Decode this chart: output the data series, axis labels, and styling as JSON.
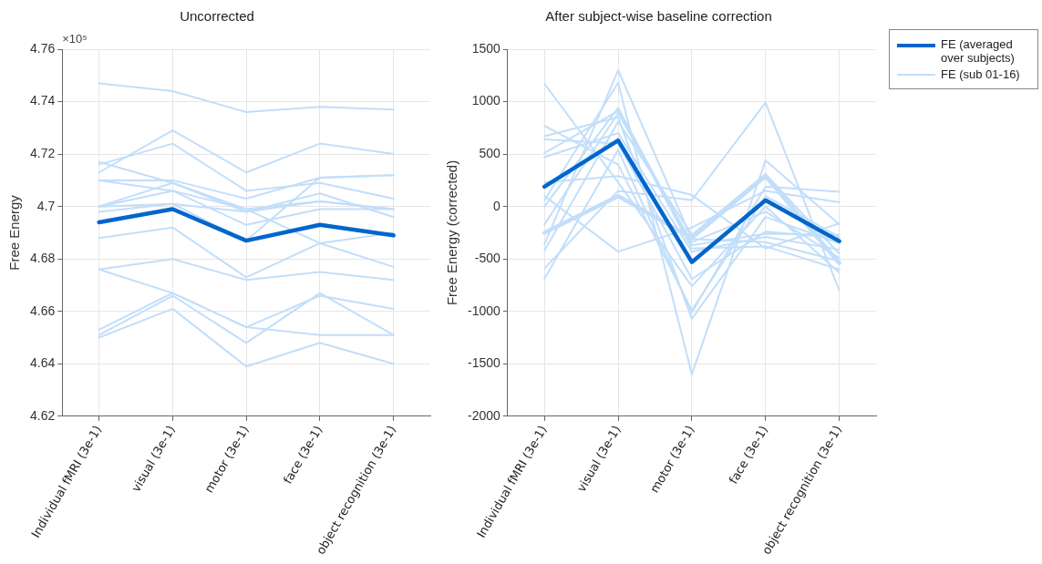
{
  "chart_data": [
    {
      "type": "line",
      "title": "Uncorrected",
      "ylabel": "Free Energy",
      "annotations": [
        "×10⁵"
      ],
      "categories": [
        "Individual fMRI (3e-1)",
        "visual (3e-1)",
        "motor (3e-1)",
        "face (3e-1)",
        "object recognition (3e-1)"
      ],
      "ylim": [
        4.62,
        4.76
      ],
      "yticks": [
        4.62,
        4.64,
        4.66,
        4.68,
        {
          "value": 4.7,
          "label": "4.7"
        },
        4.72,
        4.74,
        4.76
      ],
      "grid": true,
      "marker": "none",
      "line_style": "solid",
      "series": [
        {
          "color": "#c2defa",
          "values": [
            4.747,
            4.744,
            4.736,
            4.738,
            4.737
          ]
        },
        {
          "color": "#c2defa",
          "values": [
            4.713,
            4.729,
            4.713,
            4.724,
            4.72
          ]
        },
        {
          "color": "#c2defa",
          "values": [
            4.716,
            4.724,
            4.706,
            4.709,
            4.703
          ]
        },
        {
          "color": "#c2defa",
          "values": [
            4.717,
            4.709,
            4.698,
            4.705,
            4.696
          ]
        },
        {
          "color": "#c2defa",
          "values": [
            4.71,
            4.71,
            4.703,
            4.711,
            4.712
          ]
        },
        {
          "color": "#c2defa",
          "values": [
            4.71,
            4.706,
            4.699,
            4.702,
            4.699
          ]
        },
        {
          "color": "#c2defa",
          "values": [
            4.7,
            4.706,
            4.693,
            4.699,
            4.699
          ]
        },
        {
          "color": "#c2defa",
          "values": [
            4.7,
            4.701,
            4.698,
            4.702,
            4.699
          ]
        },
        {
          "color": "#c2defa",
          "values": [
            4.698,
            4.701,
            4.687,
            4.711,
            4.712
          ]
        },
        {
          "color": "#c2defa",
          "values": [
            4.7,
            4.709,
            4.699,
            4.686,
            4.69
          ]
        },
        {
          "color": "#c2defa",
          "values": [
            4.688,
            4.692,
            4.673,
            4.686,
            4.677
          ]
        },
        {
          "color": "#c2defa",
          "values": [
            4.676,
            4.68,
            4.672,
            4.675,
            4.672
          ]
        },
        {
          "color": "#c2defa",
          "values": [
            4.676,
            4.667,
            4.654,
            4.651,
            4.651
          ]
        },
        {
          "color": "#c2defa",
          "values": [
            4.653,
            4.667,
            4.654,
            4.666,
            4.661
          ]
        },
        {
          "color": "#c2defa",
          "values": [
            4.651,
            4.666,
            4.648,
            4.667,
            4.651
          ]
        },
        {
          "color": "#c2defa",
          "values": [
            4.65,
            4.661,
            4.639,
            4.648,
            4.64
          ]
        },
        {
          "color": "#0066cc",
          "values": [
            4.694,
            4.699,
            4.687,
            4.693,
            4.689
          ]
        }
      ]
    },
    {
      "type": "line",
      "title": "After subject-wise baseline correction",
      "ylabel": "Free Energy (corrected)",
      "legend": "top right",
      "categories": [
        "Individual fMRI (3e-1)",
        "visual (3e-1)",
        "motor (3e-1)",
        "face (3e-1)",
        "object recognition (3e-1)"
      ],
      "ylim": [
        -2000,
        1500
      ],
      "yticks": [
        -2000,
        -1500,
        -1000,
        -500,
        0,
        500,
        1000,
        1500
      ],
      "grid": true,
      "marker": "none",
      "line_style": "solid",
      "series": [
        {
          "name": "FE (averaged over subjects)",
          "color": "#0066cc",
          "values": [
            190,
            630,
            -530,
            60,
            -330
          ]
        },
        {
          "name": "FE (sub 01-16)",
          "color": "#c2defa",
          "values": [
            1170,
            230,
            -760,
            0,
            -630
          ]
        },
        {
          "color": "#c2defa",
          "values": [
            770,
            400,
            -990,
            100,
            -290
          ]
        },
        {
          "color": "#c2defa",
          "values": [
            670,
            850,
            -1070,
            -100,
            -350
          ]
        },
        {
          "color": "#c2defa",
          "values": [
            640,
            600,
            -690,
            -240,
            -300
          ]
        },
        {
          "color": "#c2defa",
          "values": [
            510,
            910,
            -400,
            -380,
            -600
          ]
        },
        {
          "color": "#c2defa",
          "values": [
            470,
            700,
            -430,
            -290,
            -410
          ]
        },
        {
          "color": "#c2defa",
          "values": [
            230,
            290,
            110,
            -400,
            -160
          ]
        },
        {
          "color": "#c2defa",
          "values": [
            60,
            1180,
            -1600,
            440,
            -170
          ]
        },
        {
          "color": "#c2defa",
          "values": [
            0,
            940,
            -370,
            -260,
            -270
          ]
        },
        {
          "color": "#c2defa",
          "values": [
            -170,
            890,
            -340,
            -50,
            -490
          ]
        },
        {
          "color": "#c2defa",
          "values": [
            -360,
            1300,
            -310,
            -340,
            -520
          ]
        },
        {
          "color": "#c2defa",
          "values": [
            -420,
            810,
            -270,
            310,
            -450
          ]
        },
        {
          "color": "#c2defa",
          "values": [
            -590,
            150,
            60,
            990,
            -800
          ]
        },
        {
          "color": "#c2defa",
          "values": [
            -690,
            540,
            -1010,
            190,
            140
          ]
        },
        {
          "color": "#c2defa",
          "values": [
            100,
            -430,
            -200,
            150,
            40
          ]
        },
        {
          "color": "#c2defa",
          "values": [
            -250,
            100,
            -300,
            290,
            -540
          ]
        }
      ]
    }
  ]
}
